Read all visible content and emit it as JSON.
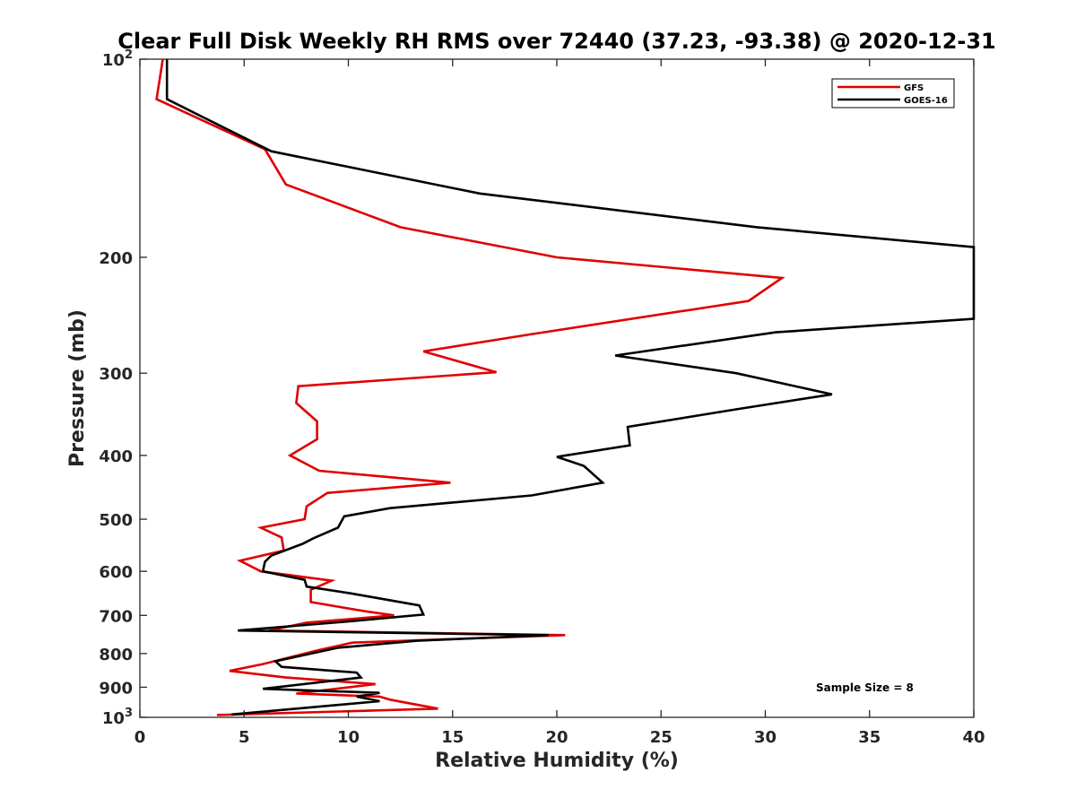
{
  "chart_data": {
    "type": "line",
    "title": "Clear Full Disk Weekly RH RMS over 72440 (37.23, -93.38) @ 2020-12-31",
    "xlabel": "Relative Humidity (%)",
    "ylabel": "Pressure (mb)",
    "xlim": [
      0,
      40
    ],
    "ylim": [
      100,
      1000
    ],
    "y_scale": "log",
    "y_reversed": true,
    "x_ticks": [
      "0",
      "5",
      "10",
      "15",
      "20",
      "25",
      "30",
      "35",
      "40"
    ],
    "y_ticks": [
      {
        "value": 100,
        "base": "10",
        "exp": "2"
      },
      {
        "value": 200,
        "label": "200"
      },
      {
        "value": 300,
        "label": "300"
      },
      {
        "value": 400,
        "label": "400"
      },
      {
        "value": 500,
        "label": "500"
      },
      {
        "value": 600,
        "label": "600"
      },
      {
        "value": 700,
        "label": "700"
      },
      {
        "value": 800,
        "label": "800"
      },
      {
        "value": 900,
        "label": "900"
      },
      {
        "value": 1000,
        "base": "10",
        "exp": "3"
      }
    ],
    "grid": false,
    "legend_position": "top-right",
    "annotation": "Sample Size = 8",
    "series": [
      {
        "name": "GFS",
        "color": "#e00000",
        "points": [
          [
            1.1,
            100
          ],
          [
            0.8,
            115
          ],
          [
            6.0,
            137
          ],
          [
            7.0,
            155
          ],
          [
            12.5,
            180
          ],
          [
            20.0,
            200
          ],
          [
            30.8,
            215
          ],
          [
            29.2,
            233
          ],
          [
            18.7,
            262
          ],
          [
            13.6,
            278
          ],
          [
            17.1,
            299
          ],
          [
            7.6,
            314
          ],
          [
            7.5,
            333
          ],
          [
            8.5,
            355
          ],
          [
            8.5,
            378
          ],
          [
            7.2,
            400
          ],
          [
            8.6,
            422
          ],
          [
            14.9,
            440
          ],
          [
            9.0,
            456
          ],
          [
            8.0,
            478
          ],
          [
            7.9,
            500
          ],
          [
            5.8,
            515
          ],
          [
            6.8,
            533
          ],
          [
            6.9,
            558
          ],
          [
            4.8,
            578
          ],
          [
            5.8,
            600
          ],
          [
            9.2,
            620
          ],
          [
            8.2,
            640
          ],
          [
            8.2,
            668
          ],
          [
            10.8,
            690
          ],
          [
            12.2,
            700
          ],
          [
            8.0,
            718
          ],
          [
            6.2,
            738
          ],
          [
            20.4,
            750
          ],
          [
            10.2,
            770
          ],
          [
            8.6,
            790
          ],
          [
            5.9,
            830
          ],
          [
            4.3,
            850
          ],
          [
            7.0,
            870
          ],
          [
            11.3,
            890
          ],
          [
            7.5,
            920
          ],
          [
            11.5,
            930
          ],
          [
            12.0,
            940
          ],
          [
            14.3,
            970
          ],
          [
            3.7,
            992
          ]
        ]
      },
      {
        "name": "GOES-16",
        "color": "#000000",
        "points": [
          [
            1.3,
            100
          ],
          [
            1.3,
            115
          ],
          [
            6.3,
            138
          ],
          [
            16.3,
            160
          ],
          [
            29.6,
            180
          ],
          [
            40.0,
            193
          ],
          [
            40.0,
            248
          ],
          [
            30.5,
            260
          ],
          [
            22.8,
            282
          ],
          [
            28.6,
            300
          ],
          [
            33.2,
            323
          ],
          [
            28.7,
            340
          ],
          [
            23.4,
            362
          ],
          [
            23.5,
            386
          ],
          [
            20.0,
            402
          ],
          [
            21.3,
            415
          ],
          [
            22.2,
            440
          ],
          [
            18.8,
            460
          ],
          [
            12.0,
            481
          ],
          [
            9.8,
            495
          ],
          [
            9.5,
            515
          ],
          [
            8.3,
            535
          ],
          [
            7.8,
            545
          ],
          [
            6.3,
            568
          ],
          [
            6.0,
            580
          ],
          [
            5.9,
            600
          ],
          [
            7.9,
            618
          ],
          [
            8.0,
            633
          ],
          [
            10.1,
            648
          ],
          [
            13.4,
            676
          ],
          [
            13.6,
            698
          ],
          [
            10.0,
            715
          ],
          [
            4.7,
            738
          ],
          [
            19.6,
            750
          ],
          [
            13.3,
            765
          ],
          [
            9.5,
            784
          ],
          [
            6.5,
            822
          ],
          [
            6.8,
            838
          ],
          [
            10.4,
            855
          ],
          [
            10.6,
            870
          ],
          [
            5.9,
            905
          ],
          [
            11.5,
            918
          ],
          [
            10.4,
            930
          ],
          [
            11.5,
            945
          ],
          [
            4.4,
            990
          ]
        ]
      }
    ]
  }
}
